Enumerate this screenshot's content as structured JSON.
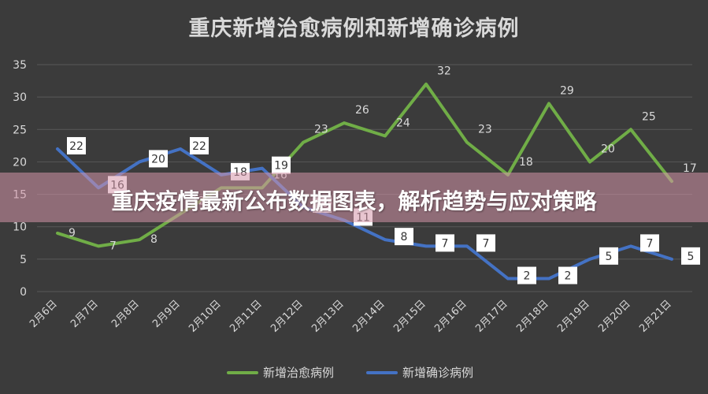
{
  "banner": {
    "text": "重庆疫情最新公布数据图表，解析趋势与应对策略"
  },
  "chart_data": {
    "type": "line",
    "title": "重庆新增治愈病例和新增确诊病例",
    "categories": [
      "2月6日",
      "2月7日",
      "2月8日",
      "2月9日",
      "2月10日",
      "2月11日",
      "2月12日",
      "2月13日",
      "2月14日",
      "2月15日",
      "2月16日",
      "2月17日",
      "2月18日",
      "2月19日",
      "2月20日",
      "2月21日"
    ],
    "ylim": [
      0,
      35
    ],
    "yticks": [
      0,
      5,
      10,
      15,
      20,
      25,
      30,
      35
    ],
    "grid": true,
    "legend_position": "bottom",
    "series": [
      {
        "name": "新增治愈病例",
        "color": "#70ad47",
        "values": [
          9,
          7,
          8,
          12,
          16,
          16,
          23,
          26,
          24,
          32,
          23,
          18,
          29,
          20,
          25,
          17
        ]
      },
      {
        "name": "新增确诊病例",
        "color": "#4472c4",
        "values": [
          22,
          16,
          20,
          22,
          18,
          19,
          13,
          11,
          8,
          7,
          7,
          2,
          2,
          5,
          7,
          5
        ]
      }
    ]
  }
}
